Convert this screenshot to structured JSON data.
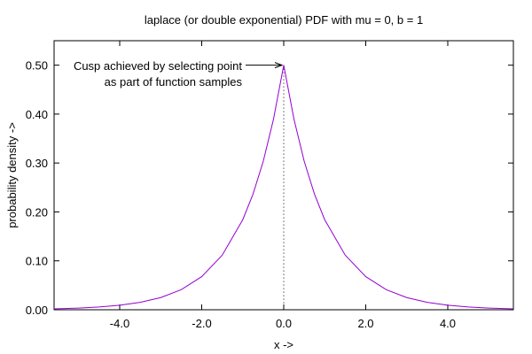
{
  "chart_data": {
    "type": "line",
    "title": "laplace (or double exponential) PDF with mu = 0, b = 1",
    "xlabel": "x ->",
    "ylabel": "probability density ->",
    "xlim": [
      -5.6,
      5.6
    ],
    "ylim": [
      0.0,
      0.55
    ],
    "x_ticks": [
      -4.0,
      -2.0,
      0.0,
      2.0,
      4.0
    ],
    "x_tick_labels": [
      "-4.0",
      "-2.0",
      "0.0",
      "2.0",
      "4.0"
    ],
    "y_ticks": [
      0.0,
      0.1,
      0.2,
      0.3,
      0.4,
      0.5
    ],
    "y_tick_labels": [
      "0.00",
      "0.10",
      "0.20",
      "0.30",
      "0.40",
      "0.50"
    ],
    "grid": false,
    "legend": "none",
    "line_color": "#9400d3",
    "series": [
      {
        "x": [
          -5.6,
          -5.0,
          -4.5,
          -4.0,
          -3.5,
          -3.0,
          -2.5,
          -2.0,
          -1.5,
          -1.0,
          -0.75,
          -0.5,
          -0.25,
          0.0,
          0.25,
          0.5,
          0.75,
          1.0,
          1.5,
          2.0,
          2.5,
          3.0,
          3.5,
          4.0,
          4.5,
          5.0,
          5.6
        ],
        "y": [
          0.0018,
          0.0034,
          0.0056,
          0.0092,
          0.0151,
          0.0249,
          0.041,
          0.0677,
          0.1116,
          0.1839,
          0.2362,
          0.3033,
          0.3894,
          0.5,
          0.3894,
          0.3033,
          0.2362,
          0.1839,
          0.1116,
          0.0677,
          0.041,
          0.0249,
          0.0151,
          0.0092,
          0.0056,
          0.0034,
          0.0018
        ]
      }
    ],
    "marker_line": {
      "x": 0.0
    },
    "annotation": {
      "lines": [
        "Cusp achieved by selecting point",
        "as part of function samples"
      ],
      "point": [
        0.0,
        0.5
      ]
    }
  }
}
